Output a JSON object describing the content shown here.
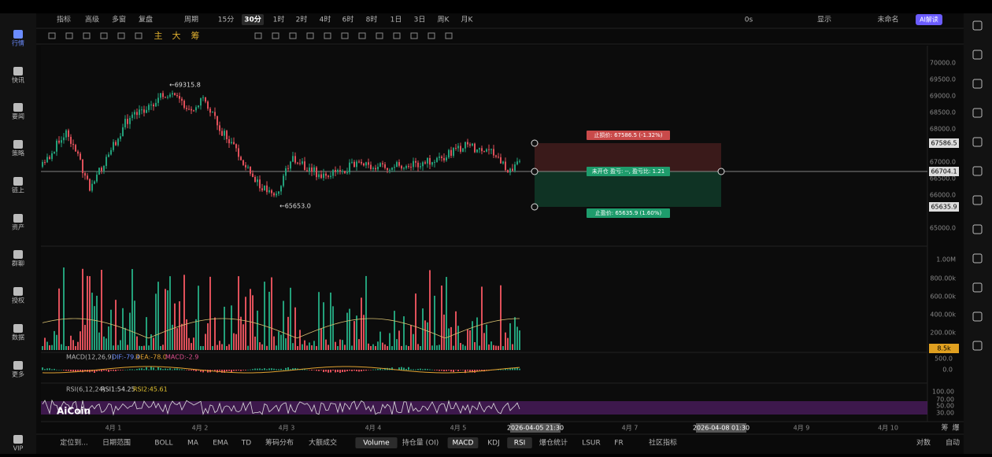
{
  "sidebar": [
    "行情",
    "快讯",
    "要闻",
    "策略",
    "链上",
    "资产",
    "群聊",
    "授权",
    "数据",
    "更多",
    "VIP"
  ],
  "toolbar": {
    "left": [
      "指标",
      "高级",
      "多窗",
      "复盘"
    ],
    "period_label": "周期",
    "periods": [
      "15分",
      "30分",
      "1时",
      "2时",
      "4时",
      "6时",
      "8时",
      "1日",
      "3日",
      "周K",
      "月K"
    ],
    "active_period": 1,
    "right": [
      "0s",
      "显示",
      "未命名",
      "AI解读"
    ]
  },
  "draw_toolbar": [
    "主",
    "大",
    "筹"
  ],
  "price_axis": [
    "70000.0",
    "69500.0",
    "69000.0",
    "68500.0",
    "68000.0",
    "67000.0",
    "66500.0",
    "66000.0",
    "65000.0"
  ],
  "price_tags": [
    "67586.5",
    "66704.1",
    "65635.9"
  ],
  "annotations": {
    "high": "←69315.8",
    "low": "←65653.0",
    "stop_loss": "止损价: 67586.5 (-1.32%)",
    "position": "未开仓  盈亏: --, 盈亏比: 1.21",
    "take_profit": "止盈价: 65635.9 (1.60%)"
  },
  "volume_axis": [
    "1.00M",
    "800.00k",
    "600.00k",
    "400.00k",
    "200.00k"
  ],
  "volume_tag": "8.5k",
  "macd": {
    "label": "MACD(12,26,9)",
    "dif": "DIF:-79.4",
    "dea": "DEA:-78.0",
    "macd": "MACD:-2.9",
    "axis": [
      "500.0",
      "0.0"
    ]
  },
  "rsi": {
    "label": "RSI(6,12,24)",
    "rsi1": "RSI1:54.25",
    "rsi2": "RSI2:45.61",
    "axis": [
      "100.00",
      "70.00",
      "50.00",
      "30.00"
    ]
  },
  "logo": "AiCoin",
  "x_axis": [
    "4月 1",
    "4月 2",
    "4月 3",
    "4月 4",
    "4月 5",
    "2026-04-05 21:30",
    "4月 7",
    "2026-04-08 01:30",
    "4月 9",
    "4月 10"
  ],
  "x_axis_right": [
    "筹",
    "爆"
  ],
  "bottom_tabs": [
    "定位到...",
    "日期范围",
    "BOLL",
    "MA",
    "EMA",
    "TD",
    "筹码分布",
    "大额成交",
    "Volume",
    "持仓量 (OI)",
    "MACD",
    "KDJ",
    "RSI",
    "爆仓统计",
    "LSUR",
    "FR",
    "社区指标"
  ],
  "bottom_right": [
    "对数",
    "自动"
  ]
}
